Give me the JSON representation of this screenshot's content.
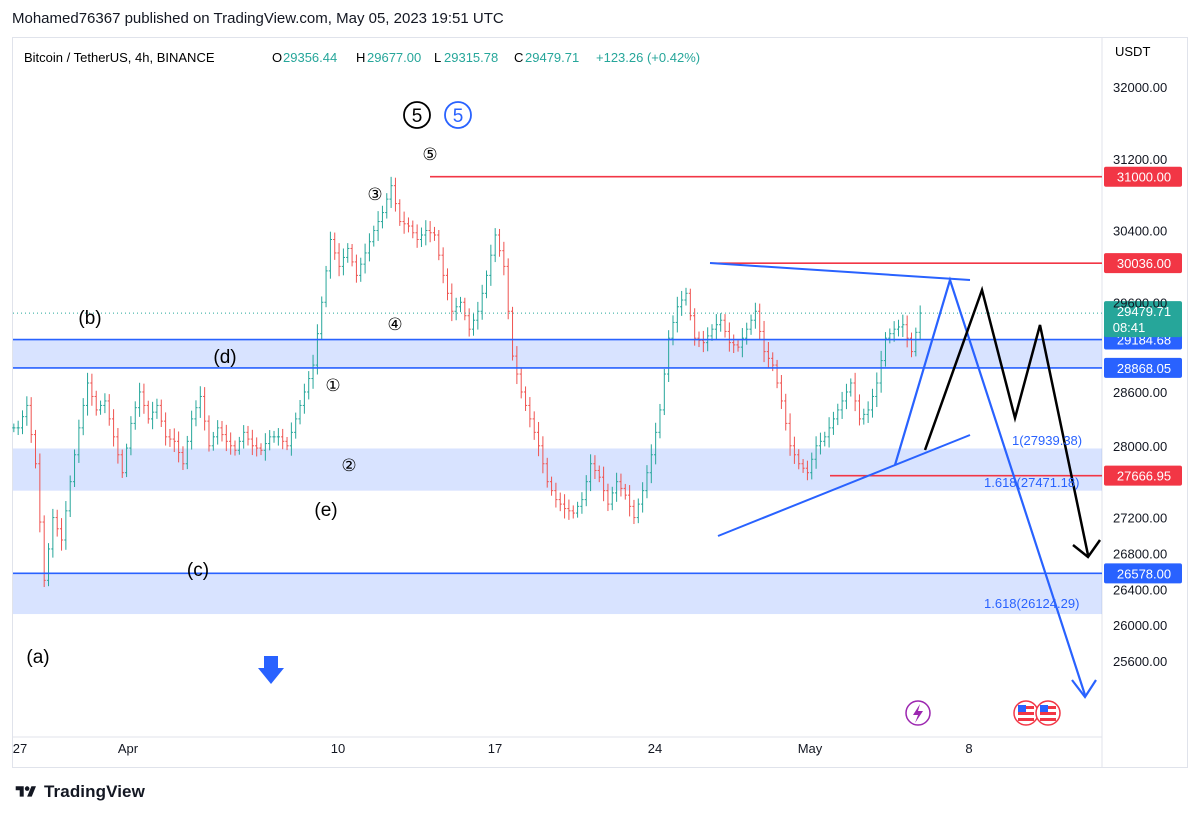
{
  "header": {
    "publish_text": "Mohamed76367 published on TradingView.com, May 05, 2023 19:51 UTC"
  },
  "legend": {
    "symbol": "Bitcoin / TetherUS, 4h, BINANCE",
    "o_label": "O",
    "o_value": "29356.44",
    "h_label": "H",
    "h_value": "29677.00",
    "l_label": "L",
    "l_value": "29315.78",
    "c_label": "C",
    "c_value": "29479.71",
    "change": "+123.26 (+0.42%)"
  },
  "footer": {
    "brand": "TradingView"
  },
  "chart_data": {
    "type": "candlestick",
    "instrument": "Bitcoin / TetherUS",
    "timeframe": "4h",
    "exchange": "BINANCE",
    "currency_label": "USDT",
    "ylim": [
      25450,
      32350
    ],
    "y_ticks": [
      "32000.00",
      "31200.00",
      "30400.00",
      "29600.00",
      "28600.00",
      "28000.00",
      "27200.00",
      "26800.00",
      "26400.00",
      "26000.00",
      "25600.00"
    ],
    "x_ticks": [
      "27",
      "Apr",
      "10",
      "17",
      "24",
      "May",
      "8"
    ],
    "last_price": {
      "value": 29479.71,
      "label": "29479.71",
      "countdown": "08:41"
    },
    "horizontal_lines": [
      {
        "label": "31000.00",
        "value": 31000,
        "color": "#f23645"
      },
      {
        "label": "30036.00",
        "value": 30036,
        "color": "#f23645"
      },
      {
        "label": "29184.68",
        "value": 29184.68,
        "color": "#2962ff"
      },
      {
        "label": "28868.05",
        "value": 28868.05,
        "color": "#2962ff"
      },
      {
        "label": "27666.95",
        "value": 27666.95,
        "color": "#f23645"
      },
      {
        "label": "26578.00",
        "value": 26578,
        "color": "#2962ff"
      }
    ],
    "zones": [
      {
        "from": 28868.05,
        "to": 29184.68
      },
      {
        "from": 27500,
        "to": 27970
      },
      {
        "from": 26124.29,
        "to": 26578
      }
    ],
    "fib_labels": [
      {
        "text": "1(27939.38)",
        "value": 27939.38
      },
      {
        "text": "1.618(27471.18)",
        "value": 27471.18
      },
      {
        "text": "1.618(26124.29)",
        "value": 26124.29
      }
    ],
    "wave_labels": [
      "(a)",
      "(b)",
      "(c)",
      "(d)",
      "(e)",
      "①",
      "②",
      "③",
      "④",
      "⑤"
    ],
    "wave_header": [
      "⑤",
      "5"
    ],
    "price_path": [
      [
        28200,
        28450,
        27800,
        26500,
        27200,
        26950,
        27600,
        28200,
        28700,
        28400,
        28500,
        28100,
        27700,
        28250,
        28600,
        28300,
        28450,
        28100,
        28050,
        27800,
        28300,
        28550,
        28000,
        28200,
        28050,
        27950,
        28150,
        28000,
        27950,
        28100,
        28100,
        28000,
        28300,
        28600,
        28900,
        29600,
        30300,
        30000,
        30200,
        29900,
        30150,
        30400,
        30600,
        30900,
        30500,
        30450,
        30300,
        30400,
        30350,
        29900,
        29500,
        29600,
        29300,
        29500,
        29900,
        30350,
        30000,
        29000,
        28600,
        28300,
        28000,
        27600,
        27400,
        27300,
        27250,
        27400,
        27800,
        27650,
        27350,
        27600,
        27450,
        27200,
        27500,
        27900,
        28400,
        29200,
        29550,
        29700,
        29200,
        29150,
        29300,
        29400,
        29150,
        29100,
        29300,
        29500,
        29050,
        28900,
        28500,
        28000,
        27800,
        27700,
        28000,
        28100,
        28300,
        28500,
        28700,
        28300,
        28400,
        28700,
        29200,
        29300,
        29350,
        29050,
        29480
      ]
    ],
    "projections": [
      {
        "color": "#000000",
        "path": "zigzag-down"
      },
      {
        "color": "#2962ff",
        "path": "triangle-breakdown"
      }
    ]
  }
}
